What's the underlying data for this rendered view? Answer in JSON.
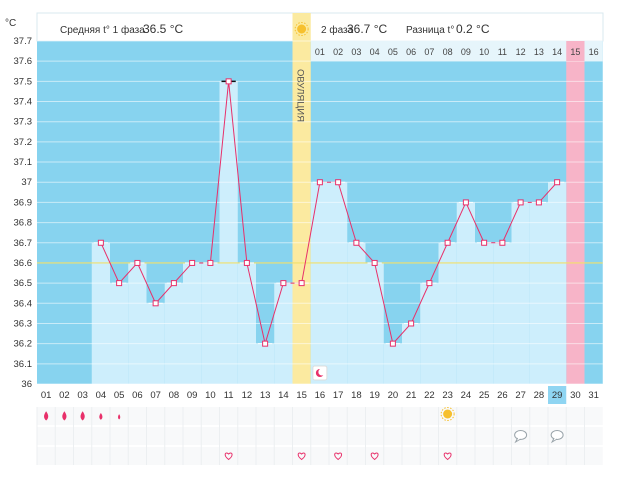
{
  "chart_data": {
    "type": "line",
    "y_unit": "°C",
    "ylim": [
      36.0,
      37.7
    ],
    "y_ticks": [
      "37.7",
      "37.6",
      "37.5",
      "37.4",
      "37.3",
      "37.2",
      "37.1",
      "37",
      "36.9",
      "36.8",
      "36.7",
      "36.6",
      "36.5",
      "36.4",
      "36.3",
      "36.2",
      "36.1",
      "36"
    ],
    "days": [
      "01",
      "02",
      "03",
      "04",
      "05",
      "06",
      "07",
      "08",
      "09",
      "10",
      "11",
      "12",
      "13",
      "14",
      "15",
      "16",
      "17",
      "18",
      "19",
      "20",
      "21",
      "22",
      "23",
      "24",
      "25",
      "26",
      "27",
      "28",
      "29",
      "30",
      "31"
    ],
    "temperatures": [
      null,
      null,
      null,
      36.7,
      36.5,
      36.6,
      36.4,
      36.5,
      36.6,
      36.6,
      37.5,
      36.6,
      36.2,
      36.5,
      36.5,
      37.0,
      37.0,
      36.7,
      36.6,
      36.2,
      36.3,
      36.5,
      36.7,
      36.9,
      36.7,
      36.7,
      36.9,
      36.9,
      37.0,
      null,
      null
    ],
    "cover_line": 36.6,
    "phase1_text": "Средняя t° 1 фаза",
    "phase1_value": "36.5 °C",
    "phase2_text": "2 фаза",
    "phase2_value": "36.7 °C",
    "diff_text": "Разница t°",
    "diff_value": "0.2 °C",
    "ovulation_label": "ОВУЛЯЦИЯ",
    "ovulation_day_index": 14,
    "phase2_day_labels": [
      "01",
      "02",
      "03",
      "04",
      "05",
      "06",
      "07",
      "08",
      "09",
      "10",
      "11",
      "12",
      "13",
      "14",
      "15",
      "16"
    ],
    "highlight_day_index": 28,
    "pink_day_index": 29,
    "marker_day_index": 10,
    "symbol_rows": {
      "drops": {
        "indexes": [
          0,
          1,
          2,
          3,
          4
        ],
        "sizes": [
          "large",
          "large",
          "large",
          "medium",
          "small"
        ]
      },
      "sun": {
        "indexes": [
          22
        ]
      },
      "bubbles": {
        "indexes": [
          26,
          28
        ]
      },
      "hearts": {
        "indexes": [
          10,
          14,
          16,
          18,
          22
        ]
      }
    },
    "colors": {
      "sky": "#87d3ef",
      "bar": "#cdeefc",
      "line": "#e8306a",
      "cover": "#f3e06a",
      "ovulation": "#fbeaa0",
      "pink": "#f7b4c8",
      "highlight": "#8fd5f2"
    },
    "icons": {
      "ovulation": "sun-icon",
      "moon": "moon-icon",
      "drop": "drop-icon",
      "heart": "heart-icon",
      "bubble": "speech-bubble-icon"
    }
  }
}
